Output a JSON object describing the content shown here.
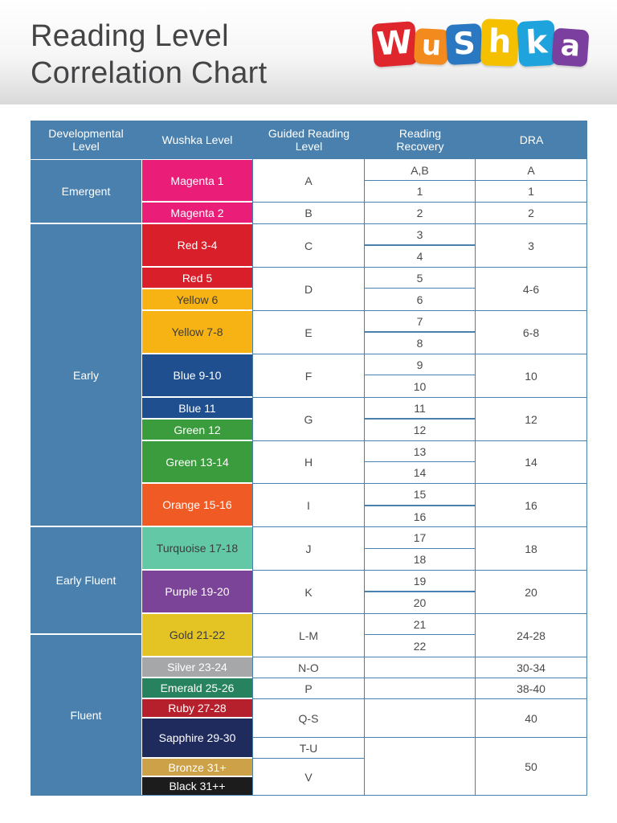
{
  "title": {
    "line1": "Reading Level",
    "line2": "Correlation Chart"
  },
  "logo": {
    "letters": [
      "W",
      "u",
      "S",
      "h",
      "k",
      "a"
    ],
    "colors": [
      "#e0262d",
      "#f28a1e",
      "#2b78c2",
      "#f4c000",
      "#1ea3dc",
      "#7b3fa0"
    ]
  },
  "headers": {
    "developmental": "Developmental Level",
    "wushka": "Wushka Level",
    "guided": "Guided Reading Level",
    "recovery": "Reading Recovery",
    "dra": "DRA"
  },
  "colors": {
    "header_blue": "#4a80ad",
    "dev_blue": "#4a80ad",
    "magenta": "#ea1e79",
    "red": "#d91f2a",
    "yellow": "#f7b314",
    "blue": "#1f4f8f",
    "green": "#3a9c3d",
    "orange": "#f05a24",
    "turquoise": "#62c8a5",
    "purple": "#7c4498",
    "gold": "#e4c324",
    "silver": "#a5a7a9",
    "emerald": "#26825f",
    "ruby": "#b61f2c",
    "sapphire": "#1f2b5d",
    "bronze": "#cda147",
    "black": "#1c1c1c"
  },
  "developmental": [
    "Emergent",
    "Early",
    "Early Fluent",
    "Fluent"
  ],
  "wushka": [
    "Magenta 1",
    "Magenta 2",
    "Red 3-4",
    "Red 5",
    "Yellow 6",
    "Yellow 7-8",
    "Blue 9-10",
    "Blue 11",
    "Green 12",
    "Green 13-14",
    "Orange 15-16",
    "Turquoise 17-18",
    "Purple 19-20",
    "Gold 21-22",
    "Silver 23-24",
    "Emerald 25-26",
    "Ruby 27-28",
    "Sapphire 29-30",
    "Bronze 31+",
    "Black 31++"
  ],
  "guided": [
    "A",
    "B",
    "C",
    "D",
    "E",
    "F",
    "G",
    "H",
    "I",
    "J",
    "K",
    "L-M",
    "N-O",
    "P",
    "Q-S",
    "T-U",
    "V"
  ],
  "recovery": [
    "A,B",
    "1",
    "2",
    "3",
    "4",
    "5",
    "6",
    "7",
    "8",
    "9",
    "10",
    "11",
    "12",
    "13",
    "14",
    "15",
    "16",
    "17",
    "18",
    "19",
    "20",
    "21",
    "22"
  ],
  "dra": [
    "A",
    "1",
    "2",
    "3",
    "4-6",
    "6-8",
    "10",
    "12",
    "14",
    "16",
    "18",
    "20",
    "24-28",
    "30-34",
    "38-40",
    "40",
    "50"
  ]
}
